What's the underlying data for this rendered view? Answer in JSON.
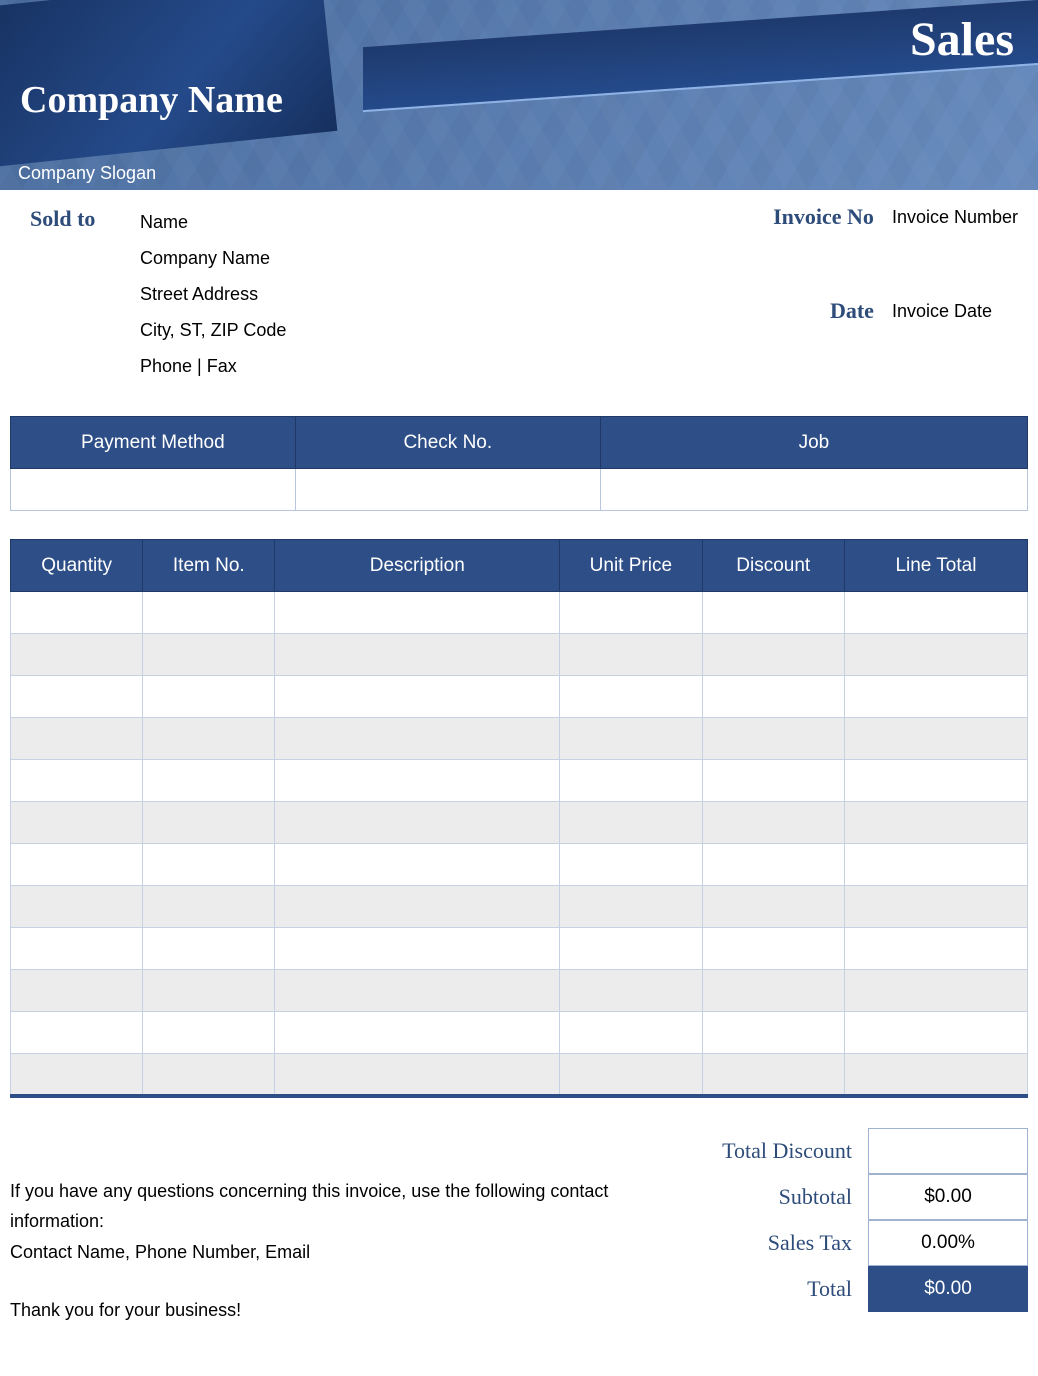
{
  "header": {
    "sales_title": "Sales",
    "company_name": "Company Name",
    "slogan": "Company Slogan",
    "colors": {
      "ribbon": "#1e3a6e",
      "background": "#5a7db0",
      "table_header": "#2e4e87",
      "accent_text": "#2e4c7a"
    }
  },
  "sold_to": {
    "label": "Sold to",
    "name": "Name",
    "company": "Company Name",
    "street": "Street Address",
    "city_line": "City, ST,  ZIP Code",
    "phone_fax": "Phone | Fax"
  },
  "invoice_meta": {
    "invoice_no_label": "Invoice No",
    "invoice_no_value": "Invoice Number",
    "date_label": "Date",
    "date_value": "Invoice Date"
  },
  "payment_table": {
    "columns": [
      "Payment Method",
      "Check No.",
      "Job"
    ],
    "row": [
      "",
      "",
      ""
    ]
  },
  "items_table": {
    "columns": [
      "Quantity",
      "Item No.",
      "Description",
      "Unit Price",
      "Discount",
      "Line Total"
    ],
    "row_count": 12,
    "alt_row_color": "#ececec",
    "border_color": "#c7d1e4"
  },
  "footer": {
    "question_text": "If you have any questions concerning this invoice, use the following contact information:",
    "contact_text": "Contact Name, Phone Number, Email",
    "thanks_text": "Thank you for your business!"
  },
  "totals": {
    "total_discount_label": "Total Discount",
    "total_discount_value": "",
    "subtotal_label": "Subtotal",
    "subtotal_value": "$0.00",
    "sales_tax_label": "Sales Tax",
    "sales_tax_value": "0.00%",
    "total_label": "Total",
    "total_value": "$0.00"
  }
}
